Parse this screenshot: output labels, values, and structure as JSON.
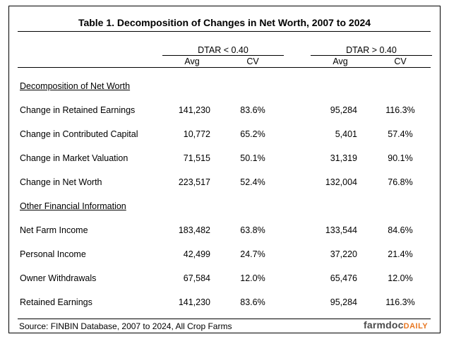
{
  "title": "Table 1.  Decomposition of Changes in Net Worth, 2007 to 2024",
  "groups": [
    {
      "label": "DTAR < 0.40",
      "col_avg": "Avg",
      "col_cv": "CV"
    },
    {
      "label": "DTAR > 0.40",
      "col_avg": "Avg",
      "col_cv": "CV"
    }
  ],
  "sections": [
    {
      "heading": "Decomposition of Net Worth",
      "rows": [
        {
          "label": "Change in Retained Earnings",
          "v": [
            "141,230",
            "83.6%",
            "95,284",
            "116.3%"
          ]
        },
        {
          "label": "Change in Contributed Capital",
          "v": [
            "10,772",
            "65.2%",
            "5,401",
            "57.4%"
          ]
        },
        {
          "label": "Change in Market Valuation",
          "v": [
            "71,515",
            "50.1%",
            "31,319",
            "90.1%"
          ]
        },
        {
          "label": "Change in Net Worth",
          "v": [
            "223,517",
            "52.4%",
            "132,004",
            "76.8%"
          ]
        }
      ]
    },
    {
      "heading": "Other Financial Information",
      "rows": [
        {
          "label": "Net Farm Income",
          "v": [
            "183,482",
            "63.8%",
            "133,544",
            "84.6%"
          ]
        },
        {
          "label": "Personal Income",
          "v": [
            "42,499",
            "24.7%",
            "37,220",
            "21.4%"
          ]
        },
        {
          "label": "Owner Withdrawals",
          "v": [
            "67,584",
            "12.0%",
            "65,476",
            "12.0%"
          ]
        },
        {
          "label": "Retained Earnings",
          "v": [
            "141,230",
            "83.6%",
            "95,284",
            "116.3%"
          ]
        }
      ]
    }
  ],
  "source": "Source: FINBIN Database, 2007 to 2024, All Crop Farms",
  "logo": {
    "part1": "farmdoc",
    "part2": "DAILY"
  }
}
